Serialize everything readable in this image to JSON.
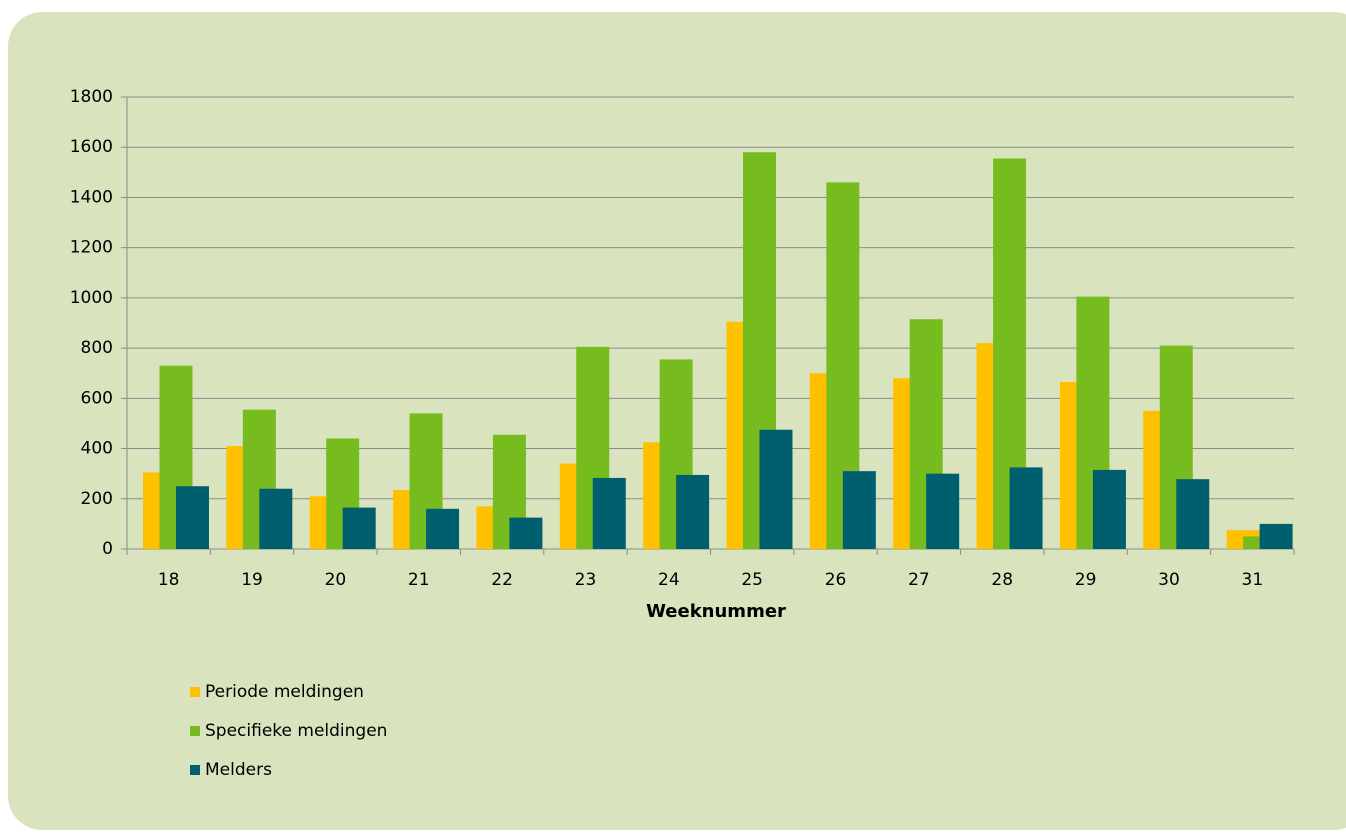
{
  "chart_data": {
    "type": "bar",
    "x_label": "Weeknummer",
    "categories": [
      "18",
      "19",
      "20",
      "21",
      "22",
      "23",
      "24",
      "25",
      "26",
      "27",
      "28",
      "29",
      "30",
      "31"
    ],
    "series": [
      {
        "name": "Periode meldingen",
        "color": "#ffc000",
        "values": [
          305,
          410,
          210,
          235,
          170,
          340,
          425,
          905,
          700,
          680,
          820,
          665,
          550,
          75
        ]
      },
      {
        "name": "Specifieke meldingen",
        "color": "#77bc1f",
        "values": [
          730,
          555,
          440,
          540,
          455,
          805,
          755,
          1580,
          1460,
          915,
          1555,
          1005,
          810,
          50
        ]
      },
      {
        "name": "Melders",
        "color": "#005f6e",
        "values": [
          250,
          240,
          165,
          160,
          125,
          283,
          295,
          475,
          310,
          300,
          325,
          315,
          278,
          100
        ]
      }
    ],
    "ylim": [
      0,
      1800
    ],
    "yticks": [
      0,
      200,
      400,
      600,
      800,
      1000,
      1200,
      1400,
      1600,
      1800
    ],
    "grid": true
  }
}
